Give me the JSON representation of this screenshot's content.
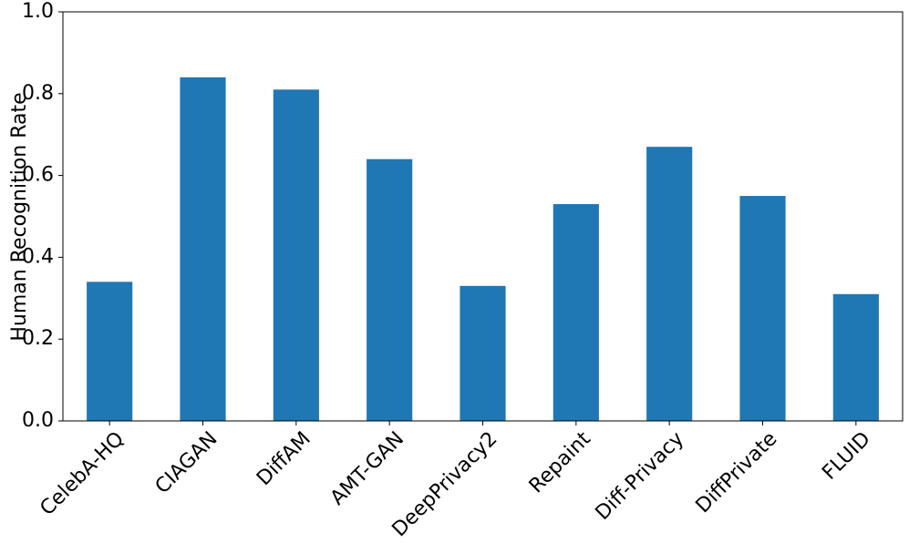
{
  "chart_data": {
    "type": "bar",
    "y_label": "Human Recognition Rate",
    "categories": [
      "CelebA-HQ",
      "CIAGAN",
      "DiffAM",
      "AMT-GAN",
      "DeepPrivacy2",
      "Repaint",
      "Diff-Privacy",
      "DiffPrivate",
      "FLUID"
    ],
    "values": [
      0.34,
      0.84,
      0.81,
      0.64,
      0.33,
      0.53,
      0.67,
      0.55,
      0.31
    ],
    "color": "#1f77b4",
    "ylim": [
      0,
      1
    ],
    "yticks": [
      {
        "value": 0,
        "label": "0.0"
      },
      0.2,
      0.4,
      0.6,
      0.8,
      {
        "value": 1,
        "label": "1.0"
      }
    ],
    "grid": false
  }
}
